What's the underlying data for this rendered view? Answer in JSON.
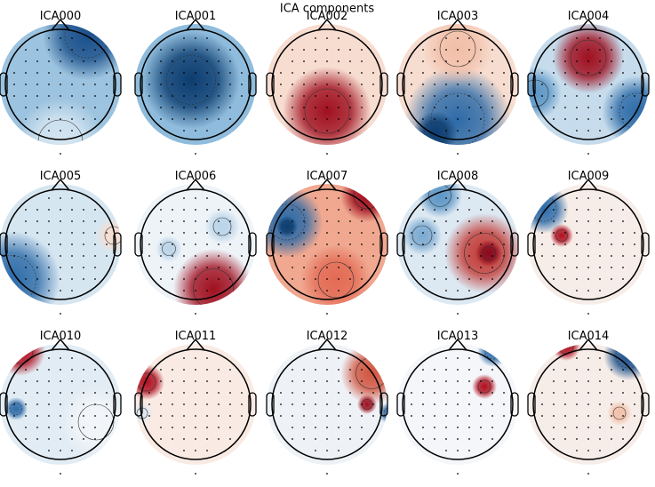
{
  "title": "ICA components",
  "components": [
    "ICA000",
    "ICA001",
    "ICA002",
    "ICA003",
    "ICA004",
    "ICA005",
    "ICA006",
    "ICA007",
    "ICA008",
    "ICA009",
    "ICA010",
    "ICA011",
    "ICA012",
    "ICA013",
    "ICA014"
  ]
}
